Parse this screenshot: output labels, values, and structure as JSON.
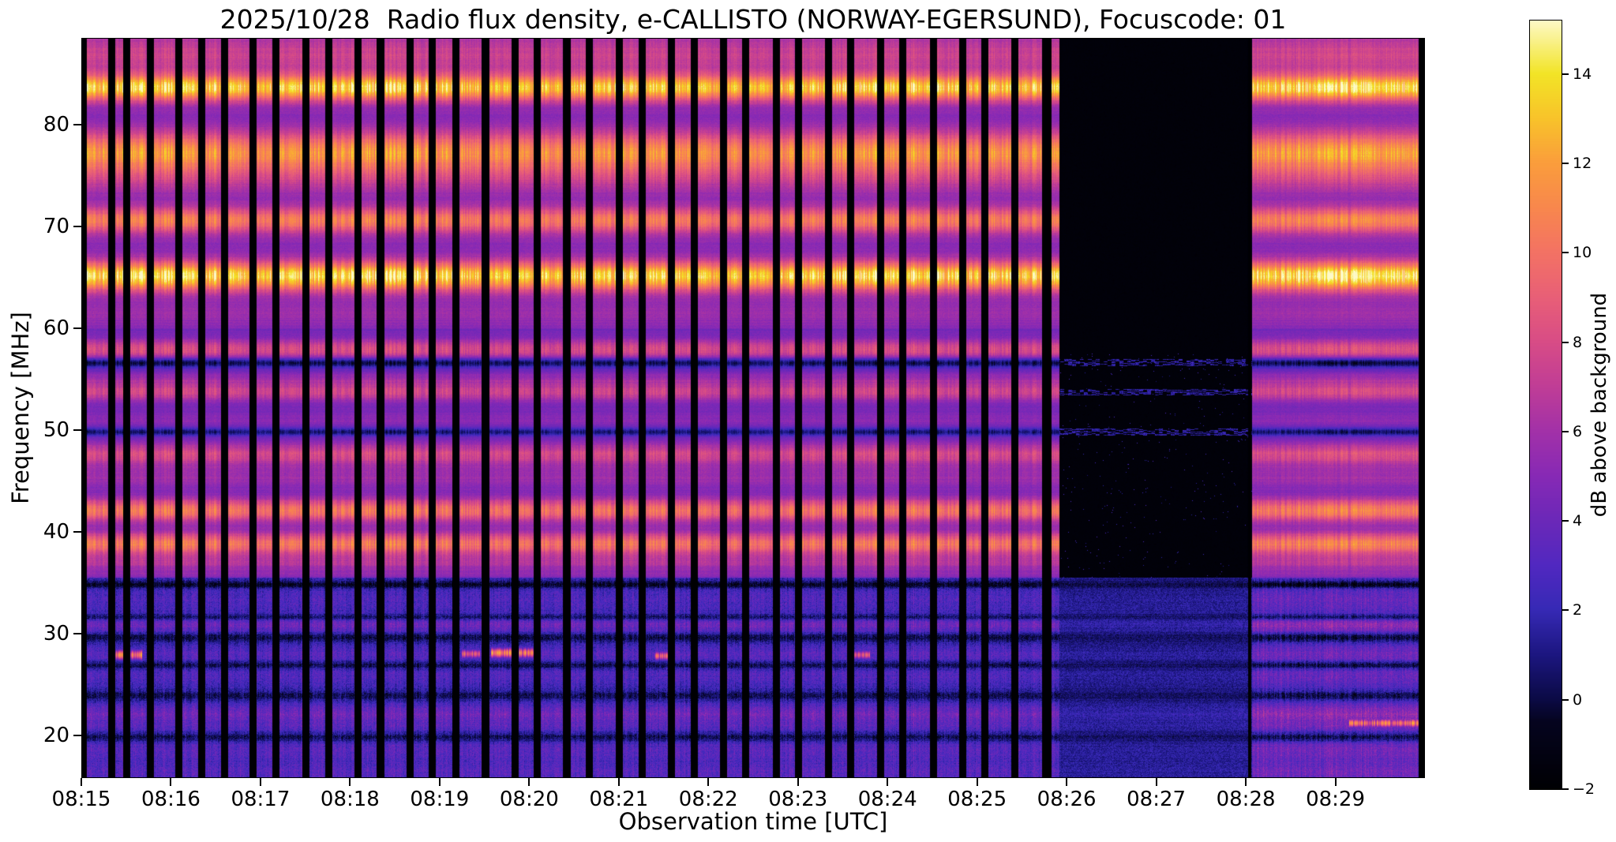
{
  "chart": {
    "title": "2025/10/28  Radio flux density, e-CALLISTO (NORWAY-EGERSUND), Focuscode: 01",
    "xlabel": "Observation time [UTC]",
    "ylabel": "Frequency [MHz]",
    "colorbar_label": "dB above background"
  },
  "chart_data": {
    "type": "heatmap",
    "subtype": "solar-radio-spectrogram",
    "title": "2025/10/28  Radio flux density, e-CALLISTO (NORWAY-EGERSUND), Focuscode: 01",
    "xlabel": "Observation time [UTC]",
    "ylabel": "Frequency [MHz]",
    "colorbar_label": "dB above background",
    "x_range_minutes": [
      0,
      15
    ],
    "x_tick_labels": [
      "08:15",
      "08:16",
      "08:17",
      "08:18",
      "08:19",
      "08:20",
      "08:21",
      "08:22",
      "08:23",
      "08:24",
      "08:25",
      "08:26",
      "08:27",
      "08:28",
      "08:29"
    ],
    "y_ticks": [
      20,
      30,
      40,
      50,
      60,
      70,
      80
    ],
    "ylim": [
      15.8,
      88.5
    ],
    "value_range": [
      -2,
      15.2
    ],
    "colorbar_ticks": [
      -2,
      0,
      2,
      4,
      6,
      8,
      10,
      12,
      14
    ],
    "colormap_stops": [
      {
        "value": -2,
        "color": "#000003"
      },
      {
        "value": -0.5,
        "color": "#05041f"
      },
      {
        "value": 0,
        "color": "#0b0a45"
      },
      {
        "value": 1,
        "color": "#1c1680"
      },
      {
        "value": 2,
        "color": "#3629b5"
      },
      {
        "value": 3,
        "color": "#5128c0"
      },
      {
        "value": 4,
        "color": "#6b28b8"
      },
      {
        "value": 5,
        "color": "#8729b5"
      },
      {
        "value": 6,
        "color": "#a231a8"
      },
      {
        "value": 7,
        "color": "#c03d96"
      },
      {
        "value": 8,
        "color": "#d84c86"
      },
      {
        "value": 9,
        "color": "#e85f77"
      },
      {
        "value": 10,
        "color": "#f37264"
      },
      {
        "value": 11,
        "color": "#f8874d"
      },
      {
        "value": 12,
        "color": "#fa9d3c"
      },
      {
        "value": 13,
        "color": "#f8c32a"
      },
      {
        "value": 14,
        "color": "#f2e426"
      },
      {
        "value": 15.2,
        "color": "#fdf9c8"
      }
    ],
    "low_band_limit_mhz": 35.5,
    "background_levels": {
      "high_band": 4.2,
      "high_band_above_60": 4.9,
      "low_band": 2.0
    },
    "emission_bands": [
      {
        "f": 86.9,
        "w": 1.4,
        "amp": 2.4
      },
      {
        "f": 83.6,
        "w": 0.9,
        "amp": 8.0
      },
      {
        "f": 77.2,
        "w": 1.4,
        "amp": 6.2
      },
      {
        "f": 74.6,
        "w": 1.0,
        "amp": 1.6
      },
      {
        "f": 70.6,
        "w": 0.9,
        "amp": 5.2
      },
      {
        "f": 65.1,
        "w": 1.0,
        "amp": 8.4
      },
      {
        "f": 61.4,
        "w": 0.8,
        "amp": 0.8
      },
      {
        "f": 57.9,
        "w": 0.7,
        "amp": 3.6
      },
      {
        "f": 56.6,
        "w": 0.35,
        "amp": -4.2
      },
      {
        "f": 54.9,
        "w": 0.5,
        "amp": 1.4
      },
      {
        "f": 53.7,
        "w": 0.6,
        "amp": 3.2
      },
      {
        "f": 51.0,
        "w": 0.6,
        "amp": 0.9
      },
      {
        "f": 49.8,
        "w": 0.3,
        "amp": -3.4
      },
      {
        "f": 47.6,
        "w": 0.8,
        "amp": 3.4
      },
      {
        "f": 45.3,
        "w": 0.8,
        "amp": 1.5
      },
      {
        "f": 42.1,
        "w": 0.8,
        "amp": 5.6
      },
      {
        "f": 38.8,
        "w": 0.8,
        "amp": 5.6
      },
      {
        "f": 36.9,
        "w": 0.5,
        "amp": 2.0
      },
      {
        "f": 35.9,
        "w": 0.3,
        "amp": 0.9
      },
      {
        "f": 34.8,
        "w": 0.25,
        "amp": -2.6
      },
      {
        "f": 33.4,
        "w": 0.8,
        "amp": 0.9
      },
      {
        "f": 31.6,
        "w": 0.2,
        "amp": -2.0
      },
      {
        "f": 30.8,
        "w": 0.5,
        "amp": 1.9
      },
      {
        "f": 29.6,
        "w": 0.3,
        "amp": -2.2
      },
      {
        "f": 28.0,
        "w": 0.7,
        "amp": 1.1
      },
      {
        "f": 26.9,
        "w": 0.25,
        "amp": -2.4
      },
      {
        "f": 25.8,
        "w": 0.7,
        "amp": 0.9
      },
      {
        "f": 23.9,
        "w": 0.3,
        "amp": -1.8
      },
      {
        "f": 22.6,
        "w": 0.5,
        "amp": 0.9
      },
      {
        "f": 21.9,
        "w": 0.5,
        "amp": 1.5
      },
      {
        "f": 20.9,
        "w": 0.4,
        "amp": 1.0
      },
      {
        "f": 19.8,
        "w": 0.3,
        "amp": -2.0
      },
      {
        "f": 18.6,
        "w": 0.7,
        "amp": 1.2
      },
      {
        "f": 17.0,
        "w": 0.6,
        "amp": 0.7
      },
      {
        "f": 16.2,
        "w": 0.4,
        "amp": 0.9
      }
    ],
    "time_segments": [
      {
        "from": 0,
        "to": 10.92,
        "type": "normal"
      },
      {
        "from": 10.92,
        "to": 13.07,
        "type": "quiet"
      },
      {
        "from": 13.07,
        "to": 15,
        "type": "bright"
      }
    ],
    "data_gaps": [
      [
        0.0,
        0.06
      ],
      [
        0.3,
        0.38
      ],
      [
        0.47,
        0.55
      ],
      [
        0.73,
        0.81
      ],
      [
        1.05,
        1.13
      ],
      [
        1.3,
        1.38
      ],
      [
        1.56,
        1.64
      ],
      [
        1.88,
        1.96
      ],
      [
        2.13,
        2.21
      ],
      [
        2.47,
        2.55
      ],
      [
        2.72,
        2.8
      ],
      [
        3.05,
        3.13
      ],
      [
        3.3,
        3.38
      ],
      [
        3.63,
        3.71
      ],
      [
        3.88,
        3.96
      ],
      [
        4.14,
        4.22
      ],
      [
        4.47,
        4.56
      ],
      [
        4.8,
        4.88
      ],
      [
        5.05,
        5.13
      ],
      [
        5.38,
        5.46
      ],
      [
        5.63,
        5.71
      ],
      [
        5.97,
        6.05
      ],
      [
        6.22,
        6.3
      ],
      [
        6.55,
        6.63
      ],
      [
        6.8,
        6.88
      ],
      [
        7.13,
        7.21
      ],
      [
        7.38,
        7.46
      ],
      [
        7.72,
        7.8
      ],
      [
        7.97,
        8.05
      ],
      [
        8.3,
        8.38
      ],
      [
        8.55,
        8.63
      ],
      [
        8.88,
        8.96
      ],
      [
        9.13,
        9.21
      ],
      [
        9.47,
        9.55
      ],
      [
        9.8,
        9.88
      ],
      [
        10.05,
        10.13
      ],
      [
        10.38,
        10.46
      ],
      [
        10.73,
        10.83
      ],
      [
        13.03,
        13.06
      ],
      [
        14.93,
        15.01
      ]
    ],
    "transients": [
      {
        "t0": 0.35,
        "t1": 0.68,
        "f": 27.9,
        "w": 0.35,
        "peak": 9.5
      },
      {
        "t0": 4.25,
        "t1": 4.45,
        "f": 28.0,
        "w": 0.3,
        "peak": 8.5
      },
      {
        "t0": 4.57,
        "t1": 5.12,
        "f": 28.1,
        "w": 0.35,
        "peak": 10.5
      },
      {
        "t0": 6.4,
        "t1": 6.62,
        "f": 27.8,
        "w": 0.3,
        "peak": 8.0
      },
      {
        "t0": 8.6,
        "t1": 8.8,
        "f": 27.9,
        "w": 0.3,
        "peak": 7.5
      },
      {
        "t0": 14.15,
        "t1": 14.93,
        "f": 21.2,
        "w": 0.3,
        "peak": 9.5
      }
    ]
  }
}
